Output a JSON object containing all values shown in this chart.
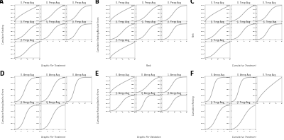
{
  "bg_color": "#d8e4ed",
  "curve_color_sigmoid": "#b0b0b0",
  "curve_color_steep": "#808080",
  "panel_label_size": 5.5,
  "title_size": 2.2,
  "tick_label_size": 1.6,
  "xlabel_size": 2.2,
  "ylabel_size": 2.0,
  "panels": [
    {
      "label": "A",
      "rows": 3,
      "cols": 3,
      "n_plots": 7,
      "titles": [
        "0. Preop Avg",
        "0. Preop Avg",
        "0. Preop Avg",
        "1. Preop Avg",
        "1. Preop Avg",
        "1. Preop Avg",
        "3. Preop Avg"
      ],
      "curve_types": [
        0,
        1,
        2,
        1,
        2,
        3,
        1
      ],
      "xlabel": "Graphic Per Treatment",
      "ylabel": "Cumulative Ranking"
    },
    {
      "label": "B",
      "rows": 3,
      "cols": 3,
      "n_plots": 7,
      "titles": [
        "0. Preop Avg",
        "0. Preop Avg",
        "0. Preop Avg",
        "1. Preop Avg",
        "1. Preop Avg",
        "1. Preop Avg",
        "3. Preop Avg"
      ],
      "curve_types": [
        0,
        1,
        2,
        1,
        2,
        3,
        0
      ],
      "xlabel": "Rank",
      "ylabel": "Cumulative Ranking Absolute Errors"
    },
    {
      "label": "C",
      "rows": 3,
      "cols": 3,
      "n_plots": 7,
      "titles": [
        "0. Tresp Avg",
        "0. Tresp Avg",
        "0. Tresp Avg",
        "1. Tresp Avg",
        "1. Tresp Avg",
        "1. Tresp Avg",
        "3. Tresp Avg"
      ],
      "curve_types": [
        0,
        1,
        2,
        1,
        2,
        3,
        1
      ],
      "xlabel": "Cumulative Treatment",
      "ylabel": "Rank"
    },
    {
      "label": "D",
      "rows": 2,
      "cols": 3,
      "n_plots": 5,
      "titles": [
        "0. Areop Avg",
        "0. Areop Avg",
        "0. Areop Avg",
        "3. Areop Avg",
        "3. Areop Avg"
      ],
      "curve_types": [
        3,
        2,
        4,
        3,
        2
      ],
      "xlabel": "Graphic Per Treatment",
      "ylabel": "Cumulative Ranking Baseline Errors"
    },
    {
      "label": "E",
      "rows": 3,
      "cols": 3,
      "n_plots": 6,
      "titles": [
        "0. Areop Avg",
        "0. Areop Avg",
        "1. Areop Avg",
        "1. Areop Avg",
        "3. Areop Avg",
        "3. Areop Avg"
      ],
      "curve_types": [
        0,
        1,
        3,
        2,
        4,
        3
      ],
      "xlabel": "Graphic Per Validation",
      "ylabel": "Cumulative Ranking Baseline Errors"
    },
    {
      "label": "F",
      "rows": 2,
      "cols": 3,
      "n_plots": 5,
      "titles": [
        "0. Areop Avg",
        "0. Areop Avg",
        "0. Tresp Avg",
        "1. Tresp Avg",
        "3. Tresp Avg"
      ],
      "curve_types": [
        4,
        4,
        0,
        2,
        1
      ],
      "xlabel": "Cumulative Treatment",
      "ylabel": "Cumulative Ranking"
    }
  ]
}
